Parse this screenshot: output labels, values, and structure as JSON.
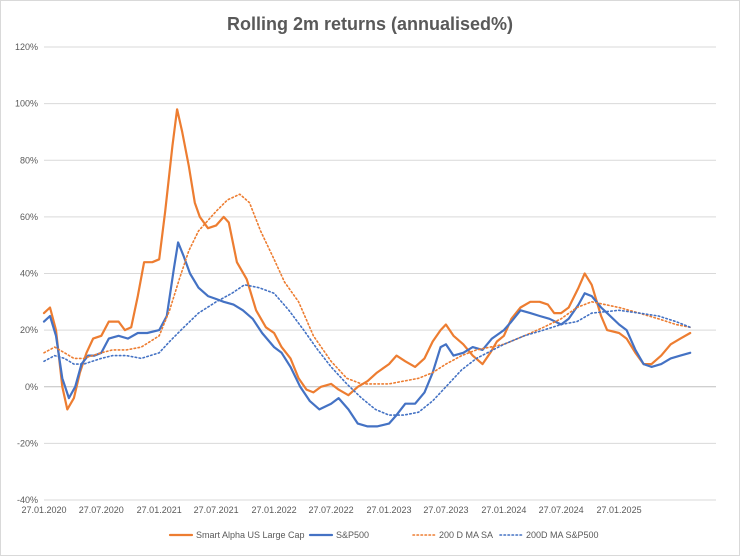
{
  "chart_data": {
    "type": "line",
    "title": "Rolling 2m returns (annualised%)",
    "xlabel": "",
    "ylabel": "",
    "ylim": [
      -40,
      120
    ],
    "y_ticks": [
      "-40%",
      "-20%",
      "0%",
      "20%",
      "40%",
      "60%",
      "80%",
      "100%",
      "120%"
    ],
    "x_ticks": [
      "27.01.2020",
      "27.07.2020",
      "27.01.2021",
      "27.07.2021",
      "27.01.2022",
      "27.07.2022",
      "27.01.2023",
      "27.07.2023",
      "27.01.2024",
      "27.07.2024",
      "27.01.2025"
    ],
    "x_range": [
      "2020-01-27",
      "2025-12-01"
    ],
    "grid": "horizontal",
    "legend_position": "bottom",
    "series": [
      {
        "name": "Smart Alpha US Large Cap",
        "color": "#ed7d31",
        "style": "solid",
        "points": [
          [
            "2020-01-27",
            26
          ],
          [
            "2020-02-15",
            28
          ],
          [
            "2020-03-05",
            20
          ],
          [
            "2020-03-25",
            0
          ],
          [
            "2020-04-10",
            -8
          ],
          [
            "2020-05-01",
            -4
          ],
          [
            "2020-05-20",
            5
          ],
          [
            "2020-06-10",
            12
          ],
          [
            "2020-07-01",
            17
          ],
          [
            "2020-07-27",
            18
          ],
          [
            "2020-08-20",
            23
          ],
          [
            "2020-09-20",
            23
          ],
          [
            "2020-10-10",
            20
          ],
          [
            "2020-10-30",
            21
          ],
          [
            "2020-11-20",
            32
          ],
          [
            "2020-12-10",
            44
          ],
          [
            "2021-01-05",
            44
          ],
          [
            "2021-01-27",
            45
          ],
          [
            "2021-02-15",
            62
          ],
          [
            "2021-03-10",
            85
          ],
          [
            "2021-03-25",
            98
          ],
          [
            "2021-04-10",
            90
          ],
          [
            "2021-05-01",
            78
          ],
          [
            "2021-05-20",
            65
          ],
          [
            "2021-06-05",
            60
          ],
          [
            "2021-07-01",
            56
          ],
          [
            "2021-07-27",
            57
          ],
          [
            "2021-08-20",
            60
          ],
          [
            "2021-09-05",
            58
          ],
          [
            "2021-10-01",
            44
          ],
          [
            "2021-11-01",
            38
          ],
          [
            "2021-12-01",
            27
          ],
          [
            "2022-01-01",
            21
          ],
          [
            "2022-01-27",
            19
          ],
          [
            "2022-02-20",
            14
          ],
          [
            "2022-03-20",
            10
          ],
          [
            "2022-04-15",
            3
          ],
          [
            "2022-05-10",
            -1
          ],
          [
            "2022-06-01",
            -2
          ],
          [
            "2022-06-25",
            0
          ],
          [
            "2022-07-27",
            1
          ],
          [
            "2022-08-20",
            -1
          ],
          [
            "2022-09-20",
            -3
          ],
          [
            "2022-10-20",
            0
          ],
          [
            "2022-11-20",
            2
          ],
          [
            "2022-12-20",
            5
          ],
          [
            "2023-01-27",
            8
          ],
          [
            "2023-02-20",
            11
          ],
          [
            "2023-03-20",
            9
          ],
          [
            "2023-04-20",
            7
          ],
          [
            "2023-05-20",
            10
          ],
          [
            "2023-06-15",
            16
          ],
          [
            "2023-07-10",
            20
          ],
          [
            "2023-07-27",
            22
          ],
          [
            "2023-08-20",
            18
          ],
          [
            "2023-09-20",
            15
          ],
          [
            "2023-10-20",
            11
          ],
          [
            "2023-11-20",
            8
          ],
          [
            "2023-12-15",
            12
          ],
          [
            "2024-01-05",
            16
          ],
          [
            "2024-01-27",
            18
          ],
          [
            "2024-02-20",
            24
          ],
          [
            "2024-03-20",
            28
          ],
          [
            "2024-04-20",
            30
          ],
          [
            "2024-05-20",
            30
          ],
          [
            "2024-06-15",
            29
          ],
          [
            "2024-07-05",
            26
          ],
          [
            "2024-07-27",
            26
          ],
          [
            "2024-08-20",
            28
          ],
          [
            "2024-09-20",
            35
          ],
          [
            "2024-10-10",
            40
          ],
          [
            "2024-11-01",
            36
          ],
          [
            "2024-12-01",
            25
          ],
          [
            "2024-12-20",
            20
          ],
          [
            "2025-01-27",
            19
          ],
          [
            "2025-02-20",
            17
          ],
          [
            "2025-03-20",
            12
          ],
          [
            "2025-04-15",
            8
          ],
          [
            "2025-05-10",
            8
          ],
          [
            "2025-06-10",
            11
          ],
          [
            "2025-07-10",
            15
          ],
          [
            "2025-08-10",
            17
          ],
          [
            "2025-09-10",
            19
          ]
        ]
      },
      {
        "name": "S&P500",
        "color": "#4472c4",
        "style": "solid",
        "points": [
          [
            "2020-01-27",
            23
          ],
          [
            "2020-02-15",
            25
          ],
          [
            "2020-03-05",
            18
          ],
          [
            "2020-03-25",
            3
          ],
          [
            "2020-04-15",
            -4
          ],
          [
            "2020-05-05",
            0
          ],
          [
            "2020-05-25",
            8
          ],
          [
            "2020-06-15",
            11
          ],
          [
            "2020-07-05",
            11
          ],
          [
            "2020-07-27",
            12
          ],
          [
            "2020-08-20",
            17
          ],
          [
            "2020-09-20",
            18
          ],
          [
            "2020-10-20",
            17
          ],
          [
            "2020-11-20",
            19
          ],
          [
            "2020-12-20",
            19
          ],
          [
            "2021-01-27",
            20
          ],
          [
            "2021-02-20",
            25
          ],
          [
            "2021-03-15",
            42
          ],
          [
            "2021-03-28",
            51
          ],
          [
            "2021-04-15",
            46
          ],
          [
            "2021-05-05",
            40
          ],
          [
            "2021-06-01",
            35
          ],
          [
            "2021-07-01",
            32
          ],
          [
            "2021-07-27",
            31
          ],
          [
            "2021-08-20",
            30
          ],
          [
            "2021-09-20",
            29
          ],
          [
            "2021-10-20",
            27
          ],
          [
            "2021-11-20",
            24
          ],
          [
            "2021-12-20",
            19
          ],
          [
            "2022-01-27",
            14
          ],
          [
            "2022-02-20",
            12
          ],
          [
            "2022-03-20",
            7
          ],
          [
            "2022-04-20",
            0
          ],
          [
            "2022-05-20",
            -5
          ],
          [
            "2022-06-20",
            -8
          ],
          [
            "2022-07-27",
            -6
          ],
          [
            "2022-08-20",
            -4
          ],
          [
            "2022-09-20",
            -8
          ],
          [
            "2022-10-20",
            -13
          ],
          [
            "2022-11-20",
            -14
          ],
          [
            "2022-12-20",
            -14
          ],
          [
            "2023-01-27",
            -13
          ],
          [
            "2023-02-20",
            -10
          ],
          [
            "2023-03-20",
            -6
          ],
          [
            "2023-04-20",
            -6
          ],
          [
            "2023-05-20",
            -2
          ],
          [
            "2023-06-15",
            5
          ],
          [
            "2023-07-10",
            14
          ],
          [
            "2023-07-27",
            15
          ],
          [
            "2023-08-20",
            11
          ],
          [
            "2023-09-20",
            12
          ],
          [
            "2023-10-20",
            14
          ],
          [
            "2023-11-20",
            13
          ],
          [
            "2023-12-20",
            17
          ],
          [
            "2024-01-27",
            20
          ],
          [
            "2024-02-20",
            23
          ],
          [
            "2024-03-20",
            27
          ],
          [
            "2024-04-20",
            26
          ],
          [
            "2024-05-20",
            25
          ],
          [
            "2024-06-20",
            24
          ],
          [
            "2024-07-27",
            22
          ],
          [
            "2024-08-20",
            24
          ],
          [
            "2024-09-20",
            29
          ],
          [
            "2024-10-10",
            33
          ],
          [
            "2024-11-01",
            32
          ],
          [
            "2024-12-01",
            28
          ],
          [
            "2024-12-20",
            26
          ],
          [
            "2025-01-27",
            22
          ],
          [
            "2025-02-20",
            20
          ],
          [
            "2025-03-20",
            13
          ],
          [
            "2025-04-15",
            8
          ],
          [
            "2025-05-10",
            7
          ],
          [
            "2025-06-10",
            8
          ],
          [
            "2025-07-10",
            10
          ],
          [
            "2025-08-10",
            11
          ],
          [
            "2025-09-10",
            12
          ]
        ]
      },
      {
        "name": "200 D MA SA",
        "color": "#ed7d31",
        "style": "dotted",
        "points": [
          [
            "2020-01-27",
            12
          ],
          [
            "2020-03-01",
            14
          ],
          [
            "2020-04-01",
            12
          ],
          [
            "2020-05-01",
            10
          ],
          [
            "2020-06-01",
            10
          ],
          [
            "2020-07-27",
            12
          ],
          [
            "2020-09-01",
            13
          ],
          [
            "2020-10-15",
            13
          ],
          [
            "2020-12-01",
            14
          ],
          [
            "2021-01-27",
            18
          ],
          [
            "2021-03-01",
            27
          ],
          [
            "2021-04-01",
            38
          ],
          [
            "2021-05-01",
            48
          ],
          [
            "2021-06-01",
            55
          ],
          [
            "2021-07-27",
            62
          ],
          [
            "2021-09-01",
            66
          ],
          [
            "2021-10-10",
            68
          ],
          [
            "2021-11-10",
            65
          ],
          [
            "2021-12-15",
            55
          ],
          [
            "2022-01-27",
            45
          ],
          [
            "2022-03-01",
            37
          ],
          [
            "2022-04-15",
            30
          ],
          [
            "2022-06-01",
            18
          ],
          [
            "2022-07-27",
            9
          ],
          [
            "2022-09-15",
            3
          ],
          [
            "2022-11-01",
            1
          ],
          [
            "2022-12-15",
            1
          ],
          [
            "2023-01-27",
            1
          ],
          [
            "2023-03-15",
            2
          ],
          [
            "2023-05-01",
            3
          ],
          [
            "2023-06-15",
            5
          ],
          [
            "2023-07-27",
            8
          ],
          [
            "2023-09-15",
            11
          ],
          [
            "2023-11-01",
            13
          ],
          [
            "2024-01-27",
            15
          ],
          [
            "2024-04-01",
            18
          ],
          [
            "2024-06-01",
            21
          ],
          [
            "2024-07-27",
            24
          ],
          [
            "2024-09-15",
            28
          ],
          [
            "2024-11-01",
            30
          ],
          [
            "2025-01-27",
            28
          ],
          [
            "2025-04-01",
            26
          ],
          [
            "2025-06-01",
            24
          ],
          [
            "2025-07-27",
            22
          ],
          [
            "2025-09-10",
            21
          ]
        ]
      },
      {
        "name": "200D MA S&P500",
        "color": "#4472c4",
        "style": "dotted",
        "points": [
          [
            "2020-01-27",
            9
          ],
          [
            "2020-03-01",
            11
          ],
          [
            "2020-04-01",
            10
          ],
          [
            "2020-05-01",
            8
          ],
          [
            "2020-06-01",
            8
          ],
          [
            "2020-07-27",
            10
          ],
          [
            "2020-09-01",
            11
          ],
          [
            "2020-10-15",
            11
          ],
          [
            "2020-12-01",
            10
          ],
          [
            "2021-01-27",
            12
          ],
          [
            "2021-03-01",
            16
          ],
          [
            "2021-04-15",
            21
          ],
          [
            "2021-06-01",
            26
          ],
          [
            "2021-07-27",
            30
          ],
          [
            "2021-09-15",
            33
          ],
          [
            "2021-10-25",
            36
          ],
          [
            "2021-12-10",
            35
          ],
          [
            "2022-01-27",
            33
          ],
          [
            "2022-03-15",
            27
          ],
          [
            "2022-05-01",
            20
          ],
          [
            "2022-06-15",
            13
          ],
          [
            "2022-07-27",
            7
          ],
          [
            "2022-09-15",
            1
          ],
          [
            "2022-11-01",
            -4
          ],
          [
            "2022-12-15",
            -8
          ],
          [
            "2023-01-27",
            -10
          ],
          [
            "2023-03-15",
            -10
          ],
          [
            "2023-05-01",
            -9
          ],
          [
            "2023-06-15",
            -5
          ],
          [
            "2023-07-27",
            0
          ],
          [
            "2023-09-15",
            6
          ],
          [
            "2023-11-01",
            10
          ],
          [
            "2024-01-27",
            15
          ],
          [
            "2024-04-01",
            18
          ],
          [
            "2024-06-01",
            20
          ],
          [
            "2024-07-27",
            22
          ],
          [
            "2024-09-15",
            23
          ],
          [
            "2024-11-01",
            26
          ],
          [
            "2025-01-27",
            27
          ],
          [
            "2025-04-01",
            26
          ],
          [
            "2025-06-01",
            25
          ],
          [
            "2025-07-27",
            23
          ],
          [
            "2025-09-10",
            21
          ]
        ]
      }
    ]
  }
}
